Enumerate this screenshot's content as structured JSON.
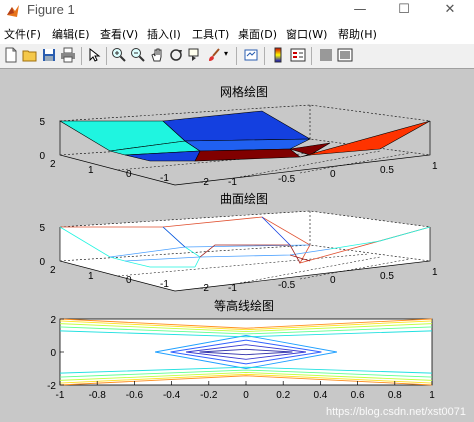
{
  "window": {
    "title": "Figure 1",
    "minimize_glyph": "—",
    "maximize_glyph": "☐",
    "close_glyph": "✕"
  },
  "menubar": {
    "items": [
      "文件(F)",
      "编辑(E)",
      "查看(V)",
      "插入(I)",
      "工具(T)",
      "桌面(D)",
      "窗口(W)",
      "帮助(H)"
    ]
  },
  "toolbar": {
    "icons": [
      "new-figure-icon",
      "open-file-icon",
      "save-icon",
      "print-icon",
      "edit-plot-icon",
      "zoom-in-icon",
      "zoom-out-icon",
      "pan-icon",
      "rotate-3d-icon",
      "data-cursor-icon",
      "brush-icon",
      "link-plot-icon",
      "colorbar-icon",
      "legend-icon",
      "hide-plot-tools-icon",
      "show-plot-tools-icon"
    ]
  },
  "colors": {
    "figure_bg": "#c8c8c8",
    "axes_bg": "#ffffff",
    "mesh_cyan": "#00ffff",
    "surf_blue": "#1440e0",
    "surf_darkred": "#800000",
    "surf_orange": "#ff3300",
    "surf_cyan": "#1ff5e0"
  },
  "watermark": "https://blog.csdn.net/xst0071",
  "chart_data": [
    {
      "type": "surface",
      "title": "网格绘图",
      "x": [
        -1,
        -0.5,
        0,
        0.5,
        1
      ],
      "y": [
        -2,
        -1,
        0,
        1,
        2
      ],
      "zlim": [
        0,
        5
      ],
      "x_ticks": [
        "-1",
        "-0.5",
        "0",
        "0.5",
        "1"
      ],
      "y_ticks": [
        "-2",
        "-1",
        "0",
        "1",
        "2"
      ],
      "z_ticks": [
        "0",
        "5"
      ],
      "grid": true
    },
    {
      "type": "mesh",
      "title": "曲面绘图",
      "x": [
        -1,
        -0.5,
        0,
        0.5,
        1
      ],
      "y": [
        -2,
        -1,
        0,
        1,
        2
      ],
      "zlim": [
        0,
        5
      ],
      "x_ticks": [
        "-1",
        "-0.5",
        "0",
        "0.5",
        "1"
      ],
      "y_ticks": [
        "-2",
        "-1",
        "0",
        "1",
        "2"
      ],
      "z_ticks": [
        "0",
        "5"
      ],
      "grid": true
    },
    {
      "type": "contour",
      "title": "等高线绘图",
      "xlim": [
        -1,
        1
      ],
      "ylim": [
        -2,
        2
      ],
      "x_ticks": [
        "-1",
        "-0.8",
        "-0.6",
        "-0.4",
        "-0.2",
        "0",
        "0.2",
        "0.4",
        "0.6",
        "0.8",
        "1"
      ],
      "y_ticks": [
        "-2",
        "0",
        "2"
      ]
    }
  ]
}
